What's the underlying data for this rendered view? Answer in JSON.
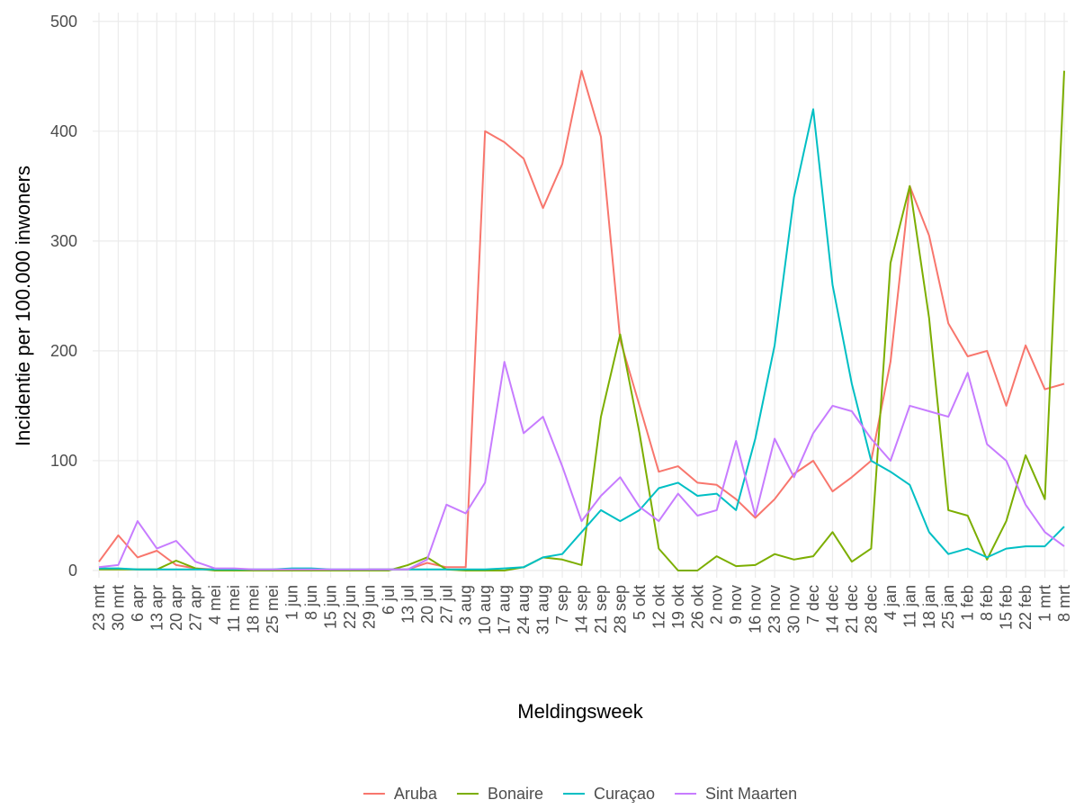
{
  "chart_data": {
    "type": "line",
    "x_label": "Meldingsweek",
    "y_label": "Incidentie per 100.000 inwoners",
    "categories": [
      "23 mrt",
      "30 mrt",
      "6 apr",
      "13 apr",
      "20 apr",
      "27 apr",
      "4 mei",
      "11 mei",
      "18 mei",
      "25 mei",
      "1 jun",
      "8 jun",
      "15 jun",
      "22 jun",
      "29 jun",
      "6 jul",
      "13 jul",
      "20 jul",
      "27 jul",
      "3 aug",
      "10 aug",
      "17 aug",
      "24 aug",
      "31 aug",
      "7 sep",
      "14 sep",
      "21 sep",
      "28 sep",
      "5 okt",
      "12 okt",
      "19 okt",
      "26 okt",
      "2 nov",
      "9 nov",
      "16 nov",
      "23 nov",
      "30 nov",
      "7 dec",
      "14 dec",
      "21 dec",
      "28 dec",
      "4 jan",
      "11 jan",
      "18 jan",
      "25 jan",
      "1 feb",
      "8 feb",
      "15 feb",
      "22 feb",
      "1 mrt",
      "8 mrt"
    ],
    "series": [
      {
        "name": "Aruba",
        "color": "#F8766D",
        "values": [
          8,
          32,
          12,
          18,
          5,
          2,
          1,
          0,
          0,
          0,
          0,
          0,
          0,
          0,
          1,
          1,
          1,
          7,
          3,
          3,
          400,
          390,
          375,
          330,
          370,
          455,
          395,
          210,
          150,
          90,
          95,
          80,
          78,
          65,
          48,
          65,
          88,
          100,
          72,
          85,
          100,
          190,
          350,
          305,
          225,
          195,
          200,
          150,
          205,
          165,
          170
        ]
      },
      {
        "name": "Bonaire",
        "color": "#7CAE00",
        "values": [
          1,
          1,
          1,
          1,
          9,
          2,
          0,
          0,
          0,
          0,
          0,
          0,
          0,
          0,
          0,
          0,
          5,
          12,
          1,
          0,
          0,
          0,
          3,
          12,
          10,
          5,
          140,
          215,
          125,
          20,
          0,
          0,
          13,
          4,
          5,
          15,
          10,
          13,
          35,
          8,
          20,
          280,
          350,
          230,
          55,
          50,
          10,
          45,
          105,
          65,
          455
        ]
      },
      {
        "name": "Curaçao",
        "color": "#00BFC4",
        "values": [
          2,
          2,
          1,
          1,
          1,
          1,
          1,
          1,
          1,
          1,
          2,
          2,
          1,
          1,
          1,
          1,
          1,
          1,
          1,
          1,
          1,
          2,
          3,
          12,
          15,
          35,
          55,
          45,
          55,
          75,
          80,
          68,
          70,
          55,
          120,
          205,
          340,
          420,
          260,
          170,
          100,
          90,
          78,
          35,
          15,
          20,
          12,
          20,
          22,
          22,
          40
        ]
      },
      {
        "name": "Sint Maarten",
        "color": "#C77CFF",
        "values": [
          3,
          5,
          45,
          20,
          27,
          8,
          2,
          2,
          1,
          1,
          1,
          1,
          1,
          1,
          1,
          1,
          1,
          10,
          60,
          52,
          80,
          190,
          125,
          140,
          95,
          45,
          68,
          85,
          58,
          45,
          70,
          50,
          55,
          118,
          50,
          120,
          85,
          125,
          150,
          145,
          120,
          100,
          150,
          145,
          140,
          180,
          115,
          100,
          60,
          35,
          22
        ]
      }
    ],
    "ylim": [
      0,
      508
    ],
    "yticks": [
      0,
      100,
      200,
      300,
      400,
      500
    ],
    "grid": true,
    "legend": "bottom"
  }
}
